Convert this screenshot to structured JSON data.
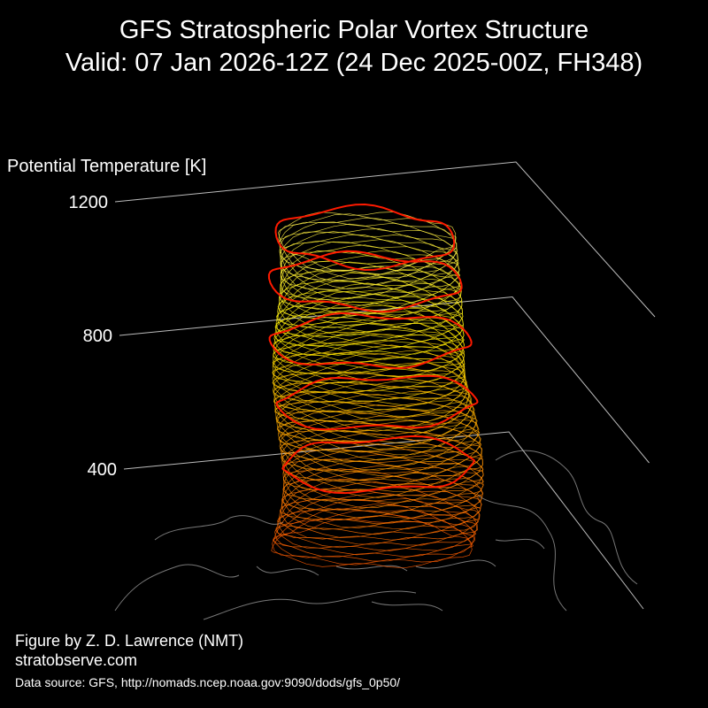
{
  "chart_data": {
    "type": "surface3d",
    "title": "GFS Stratospheric Polar Vortex Structure",
    "subtitle": "Valid: 07 Jan 2026-12Z  (24 Dec 2025-00Z, FH348)",
    "zlabel": "Potential Temperature [K]",
    "zlim": [
      400,
      1200
    ],
    "zticks": [
      400,
      800,
      1200
    ],
    "grid": true,
    "annotations": [
      "Figure by Z. D. Lawrence (NMT)",
      "stratobserve.com",
      "Data source: GFS, http://nomads.ncep.noaa.gov:9090/dods/gfs_0p50/"
    ]
  }
}
